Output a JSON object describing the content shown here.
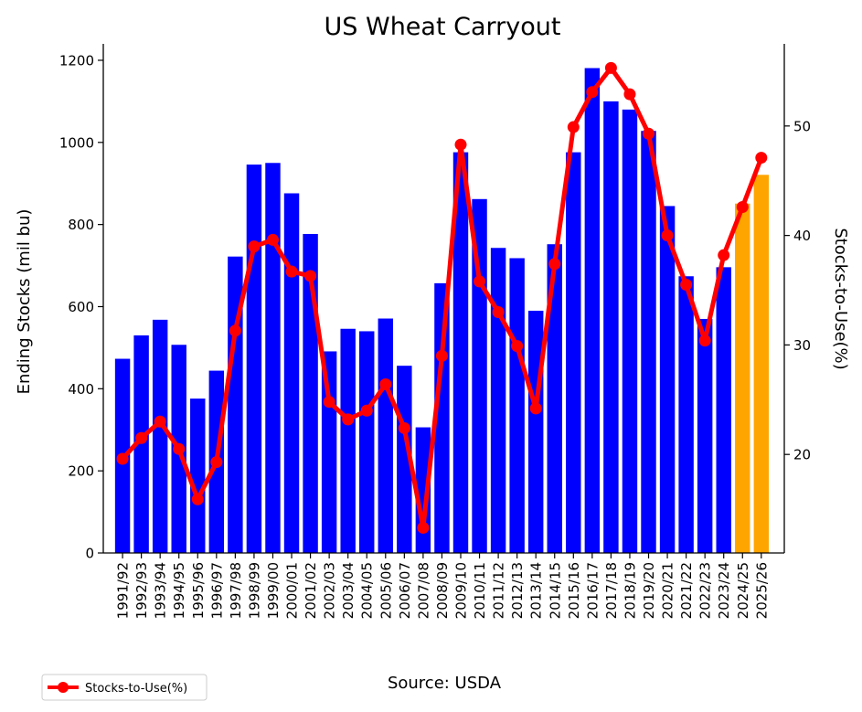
{
  "source": "Source: USDA",
  "colors": {
    "actual_bar": "#0000ff",
    "projected_bar": "#ffa500",
    "line": "#ff0000"
  },
  "chart_data": {
    "type": "bar",
    "title": "US Wheat Carryout",
    "xlabel": "",
    "ylabel": "Ending Stocks (mil bu)",
    "y2label": "Stocks-to-Use(%)",
    "ylim": [
      0,
      1240
    ],
    "y2lim": [
      11,
      57.5
    ],
    "yticks": [
      0,
      200,
      400,
      600,
      800,
      1000,
      1200
    ],
    "y2ticks": [
      20,
      30,
      40,
      50
    ],
    "legend_position": "lower-left outside",
    "grid": false,
    "categories": [
      "1991/92",
      "1992/93",
      "1993/94",
      "1994/95",
      "1995/96",
      "1996/97",
      "1997/98",
      "1998/99",
      "1999/00",
      "2000/01",
      "2001/02",
      "2002/03",
      "2003/04",
      "2004/05",
      "2005/06",
      "2006/07",
      "2007/08",
      "2008/09",
      "2009/10",
      "2010/11",
      "2011/12",
      "2012/13",
      "2013/14",
      "2014/15",
      "2015/16",
      "2016/17",
      "2017/18",
      "2018/19",
      "2019/20",
      "2020/21",
      "2021/22",
      "2022/23",
      "2023/24",
      "2024/25",
      "2025/26"
    ],
    "series": [
      {
        "type": "bar",
        "axis": "left",
        "values": [
          473,
          530,
          568,
          507,
          376,
          444,
          722,
          946,
          950,
          876,
          777,
          491,
          546,
          540,
          571,
          456,
          306,
          657,
          976,
          862,
          743,
          718,
          590,
          752,
          976,
          1181,
          1100,
          1080,
          1028,
          845,
          674,
          570,
          696,
          851,
          921
        ],
        "projected_from_index": 33
      },
      {
        "type": "line",
        "axis": "right",
        "name": "Stocks-to-Use(%)",
        "values": [
          19.6,
          21.5,
          23.0,
          20.5,
          15.9,
          19.3,
          31.3,
          39.0,
          39.6,
          36.7,
          36.3,
          24.8,
          23.2,
          24.0,
          26.4,
          22.4,
          13.3,
          29.0,
          48.3,
          35.8,
          33.0,
          29.9,
          24.2,
          37.4,
          49.9,
          53.1,
          55.3,
          52.9,
          49.3,
          40.0,
          35.5,
          30.4,
          38.2,
          42.6,
          47.1
        ]
      }
    ]
  }
}
